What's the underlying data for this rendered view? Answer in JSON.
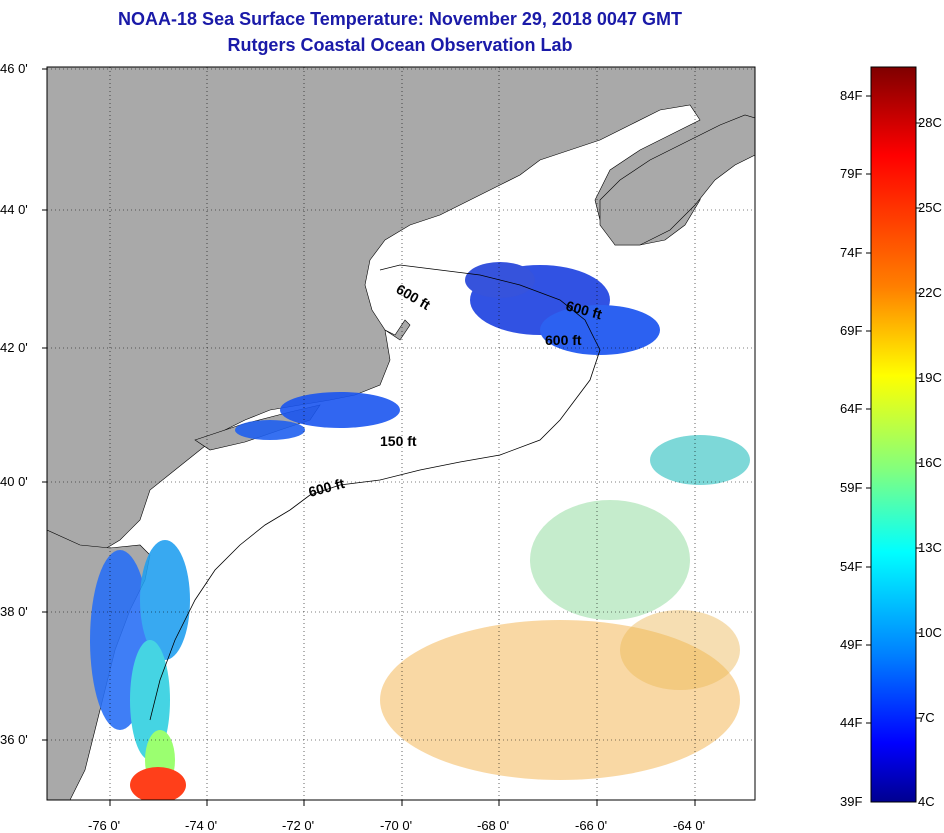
{
  "title": {
    "line1": "NOAA-18 Sea Surface Temperature:  November 29, 2018 0047 GMT",
    "line2": "Rutgers Coastal Ocean Observation Lab"
  },
  "map": {
    "lat_labels": [
      "46 0'",
      "44 0'",
      "42 0'",
      "40 0'",
      "38 0'",
      "36 0'"
    ],
    "lon_labels": [
      "-76 0'",
      "-74 0'",
      "-72 0'",
      "-70 0'",
      "-68 0'",
      "-66 0'",
      "-64 0'"
    ],
    "contour_labels": [
      "600 ft",
      "600 ft",
      "600 ft",
      "150 ft",
      "600 ft"
    ],
    "land_color": "#a9a9a9",
    "ocean_color": "#ffffff"
  },
  "colorbar": {
    "fahrenheit_labels": [
      "84F",
      "79F",
      "74F",
      "69F",
      "64F",
      "59F",
      "54F",
      "49F",
      "44F",
      "39F"
    ],
    "celsius_labels": [
      "28C",
      "25C",
      "22C",
      "19C",
      "16C",
      "13C",
      "10C",
      "7C",
      "4C"
    ],
    "color_stops": [
      "#7f0000",
      "#ff0000",
      "#ff8000",
      "#ffff00",
      "#80ff80",
      "#00ffff",
      "#0080ff",
      "#0000ff",
      "#00008f"
    ]
  }
}
